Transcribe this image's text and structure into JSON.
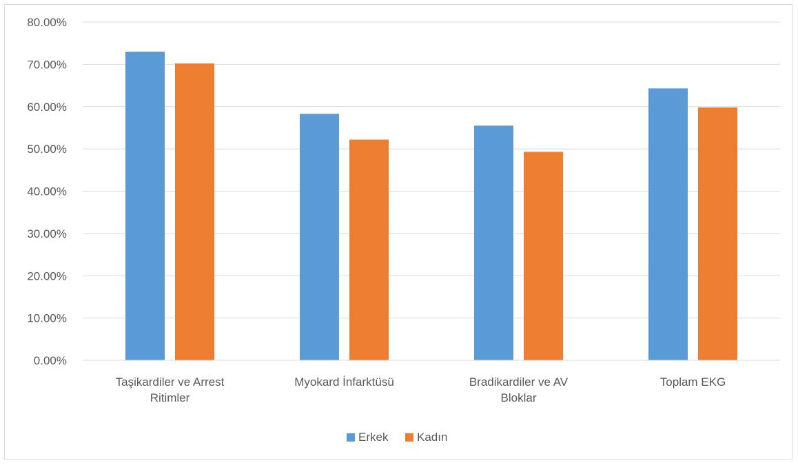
{
  "chart_data": {
    "type": "bar",
    "title": "",
    "xlabel": "",
    "ylabel": "",
    "ylim": [
      0,
      0.8
    ],
    "y_ticks": [
      "0.00%",
      "10.00%",
      "20.00%",
      "30.00%",
      "40.00%",
      "50.00%",
      "60.00%",
      "70.00%",
      "80.00%"
    ],
    "grid": true,
    "legend_position": "bottom",
    "categories": [
      [
        "Taşikardiler ve Arrest",
        "Ritimler"
      ],
      [
        "Myokard İnfarktüsü"
      ],
      [
        "Bradikardiler ve AV",
        "Bloklar"
      ],
      [
        "Toplam EKG"
      ]
    ],
    "series": [
      {
        "name": "Erkek",
        "color": "#5b9bd5",
        "values": [
          0.73,
          0.583,
          0.555,
          0.643
        ]
      },
      {
        "name": "Kadın",
        "color": "#ed7d31",
        "values": [
          0.702,
          0.522,
          0.493,
          0.598
        ]
      }
    ]
  }
}
